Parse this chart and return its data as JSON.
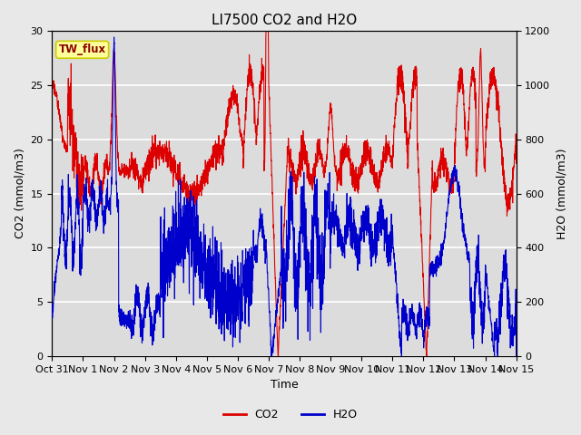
{
  "title": "LI7500 CO2 and H2O",
  "xlabel": "Time",
  "ylabel_left": "CO2 (mmol/m3)",
  "ylabel_right": "H2O (mmol/m3)",
  "legend_label": "TW_flux",
  "co2_color": "#dd0000",
  "h2o_color": "#0000cc",
  "ylim_left": [
    0,
    30
  ],
  "ylim_right": [
    0,
    1200
  ],
  "xtick_labels": [
    "Oct 31",
    "Nov 1",
    "Nov 2",
    "Nov 3",
    "Nov 4",
    "Nov 5",
    "Nov 6",
    "Nov 7",
    "Nov 8",
    "Nov 9",
    "Nov 10",
    "Nov 11",
    "Nov 12",
    "Nov 13",
    "Nov 14",
    "Nov 15"
  ],
  "fig_background": "#e8e8e8",
  "plot_background": "#dcdcdc",
  "grid_color": "#ffffff",
  "title_fontsize": 11,
  "axis_fontsize": 9,
  "tick_fontsize": 8,
  "legend_box_facecolor": "#ffff99",
  "legend_box_edgecolor": "#cccc00",
  "legend_label_color": "#8b0000",
  "n_points": 2880
}
